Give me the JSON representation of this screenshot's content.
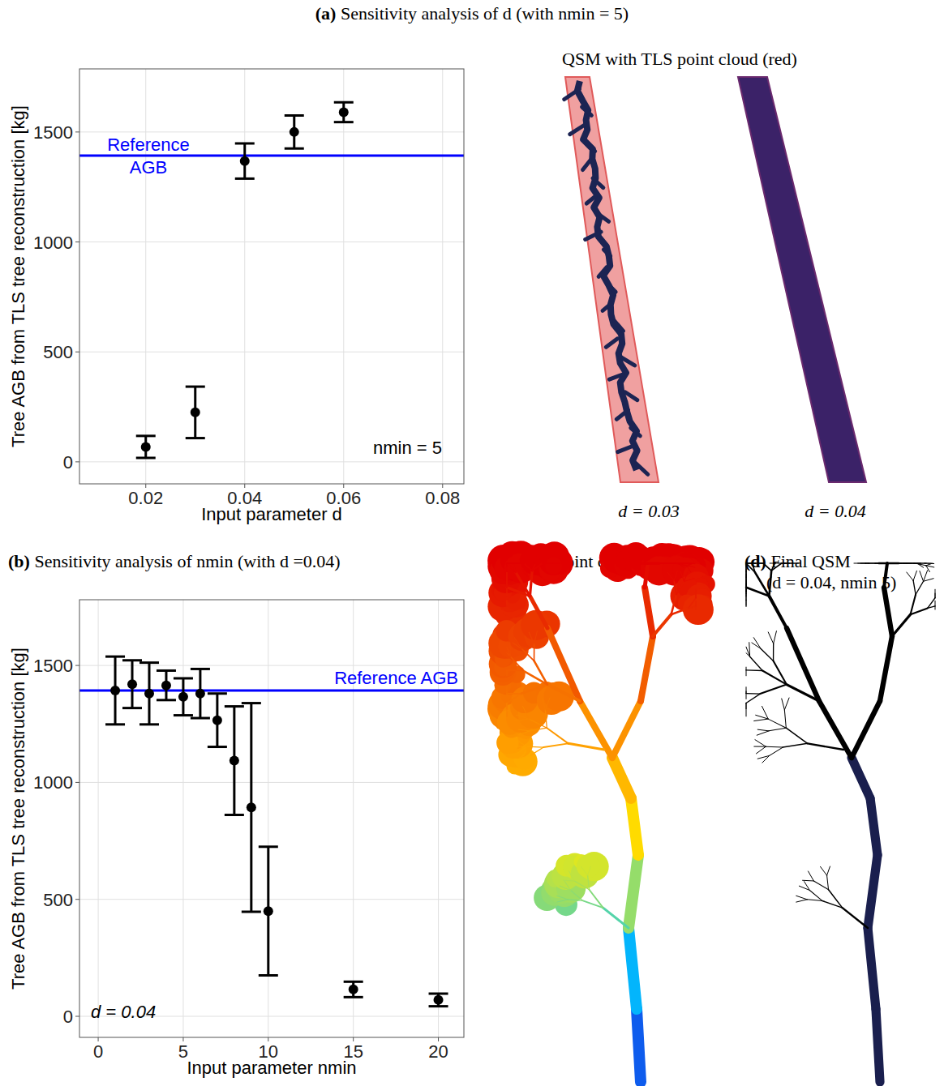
{
  "chart_data": [
    {
      "type": "scatter",
      "title": "(a) Sensitivity analysis of d (with nmin = 5)",
      "x_label": "Input parameter d",
      "y_label": "Tree AGB from TLS tree reconstruction [kg]",
      "x": [
        0.02,
        0.03,
        0.04,
        0.05,
        0.06
      ],
      "values": [
        68,
        225,
        1368,
        1500,
        1590
      ],
      "errors": [
        50,
        117,
        80,
        75,
        45
      ],
      "xlim": [
        0.0066,
        0.0843
      ],
      "ylim": [
        -100,
        1787
      ],
      "xticks": [
        0.02,
        0.04,
        0.06,
        0.08
      ],
      "yticks": [
        0,
        500,
        1000,
        1500
      ],
      "grid": true,
      "color": "#000000",
      "marker": "circle",
      "reference": {
        "label": "Reference AGB",
        "value": 1393,
        "color": "#0000ff"
      },
      "annotation": "nmin = 5"
    },
    {
      "type": "scatter",
      "title": "(b) Sensitivity analysis of nmin (with d =0.04)",
      "x_label": "Input parameter nmin",
      "y_label": "Tree AGB from TLS tree reconstruction [kg]",
      "x": [
        1,
        2,
        3,
        4,
        5,
        6,
        7,
        8,
        9,
        10,
        15,
        20
      ],
      "values": [
        1393,
        1420,
        1380,
        1415,
        1366,
        1380,
        1266,
        1093,
        893,
        450,
        115,
        70
      ],
      "errors": [
        145,
        102,
        132,
        63,
        79,
        105,
        114,
        232,
        446,
        275,
        33,
        27
      ],
      "xlim": [
        -1.1,
        21.5
      ],
      "ylim": [
        -90,
        1781
      ],
      "xticks": [
        0,
        5,
        10,
        15,
        20
      ],
      "yticks": [
        0,
        500,
        1000,
        1500
      ],
      "grid": true,
      "color": "#000000",
      "marker": "circle",
      "reference": {
        "label": "Reference AGB",
        "value": 1393,
        "color": "#0000ff"
      },
      "annotation": "d = 0.04"
    }
  ],
  "figure": {
    "qsm_title": "QSM with TLS point cloud (red)",
    "qsm_captions": [
      "d = 0.03",
      "d = 0.04"
    ],
    "c_title": "(c) TLS point cloud",
    "d_title": "(d) Final QSM (d = 0.04, nmin 5)"
  }
}
